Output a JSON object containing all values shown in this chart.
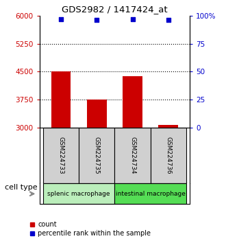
{
  "title": "GDS2982 / 1417424_at",
  "samples": [
    "GSM224733",
    "GSM224735",
    "GSM224734",
    "GSM224736"
  ],
  "bar_values": [
    4500,
    3750,
    4380,
    3080
  ],
  "percentile_values": [
    5900,
    5895,
    5905,
    5890
  ],
  "bar_color": "#cc0000",
  "dot_color": "#0000cc",
  "ylim": [
    3000,
    6000
  ],
  "ylim_right": [
    0,
    100
  ],
  "yticks_left": [
    3000,
    3750,
    4500,
    5250,
    6000
  ],
  "yticks_right": [
    0,
    25,
    50,
    75,
    100
  ],
  "ytick_labels_right": [
    "0",
    "25",
    "50",
    "75",
    "100%"
  ],
  "hlines": [
    3750,
    4500,
    5250
  ],
  "group1_label": "splenic macrophage",
  "group2_label": "intestinal macrophage",
  "group1_color": "#bbeebb",
  "group2_color": "#55dd55",
  "cell_type_label": "cell type",
  "legend_count_label": "count",
  "legend_pct_label": "percentile rank within the sample",
  "bar_width": 0.55,
  "x_positions": [
    0,
    1,
    2,
    3
  ],
  "background_color": "#ffffff",
  "left_tick_color": "#cc0000",
  "right_tick_color": "#0000cc",
  "bar_bottom": 3000,
  "dot_size": 25,
  "sample_box_color": "#d0d0d0"
}
